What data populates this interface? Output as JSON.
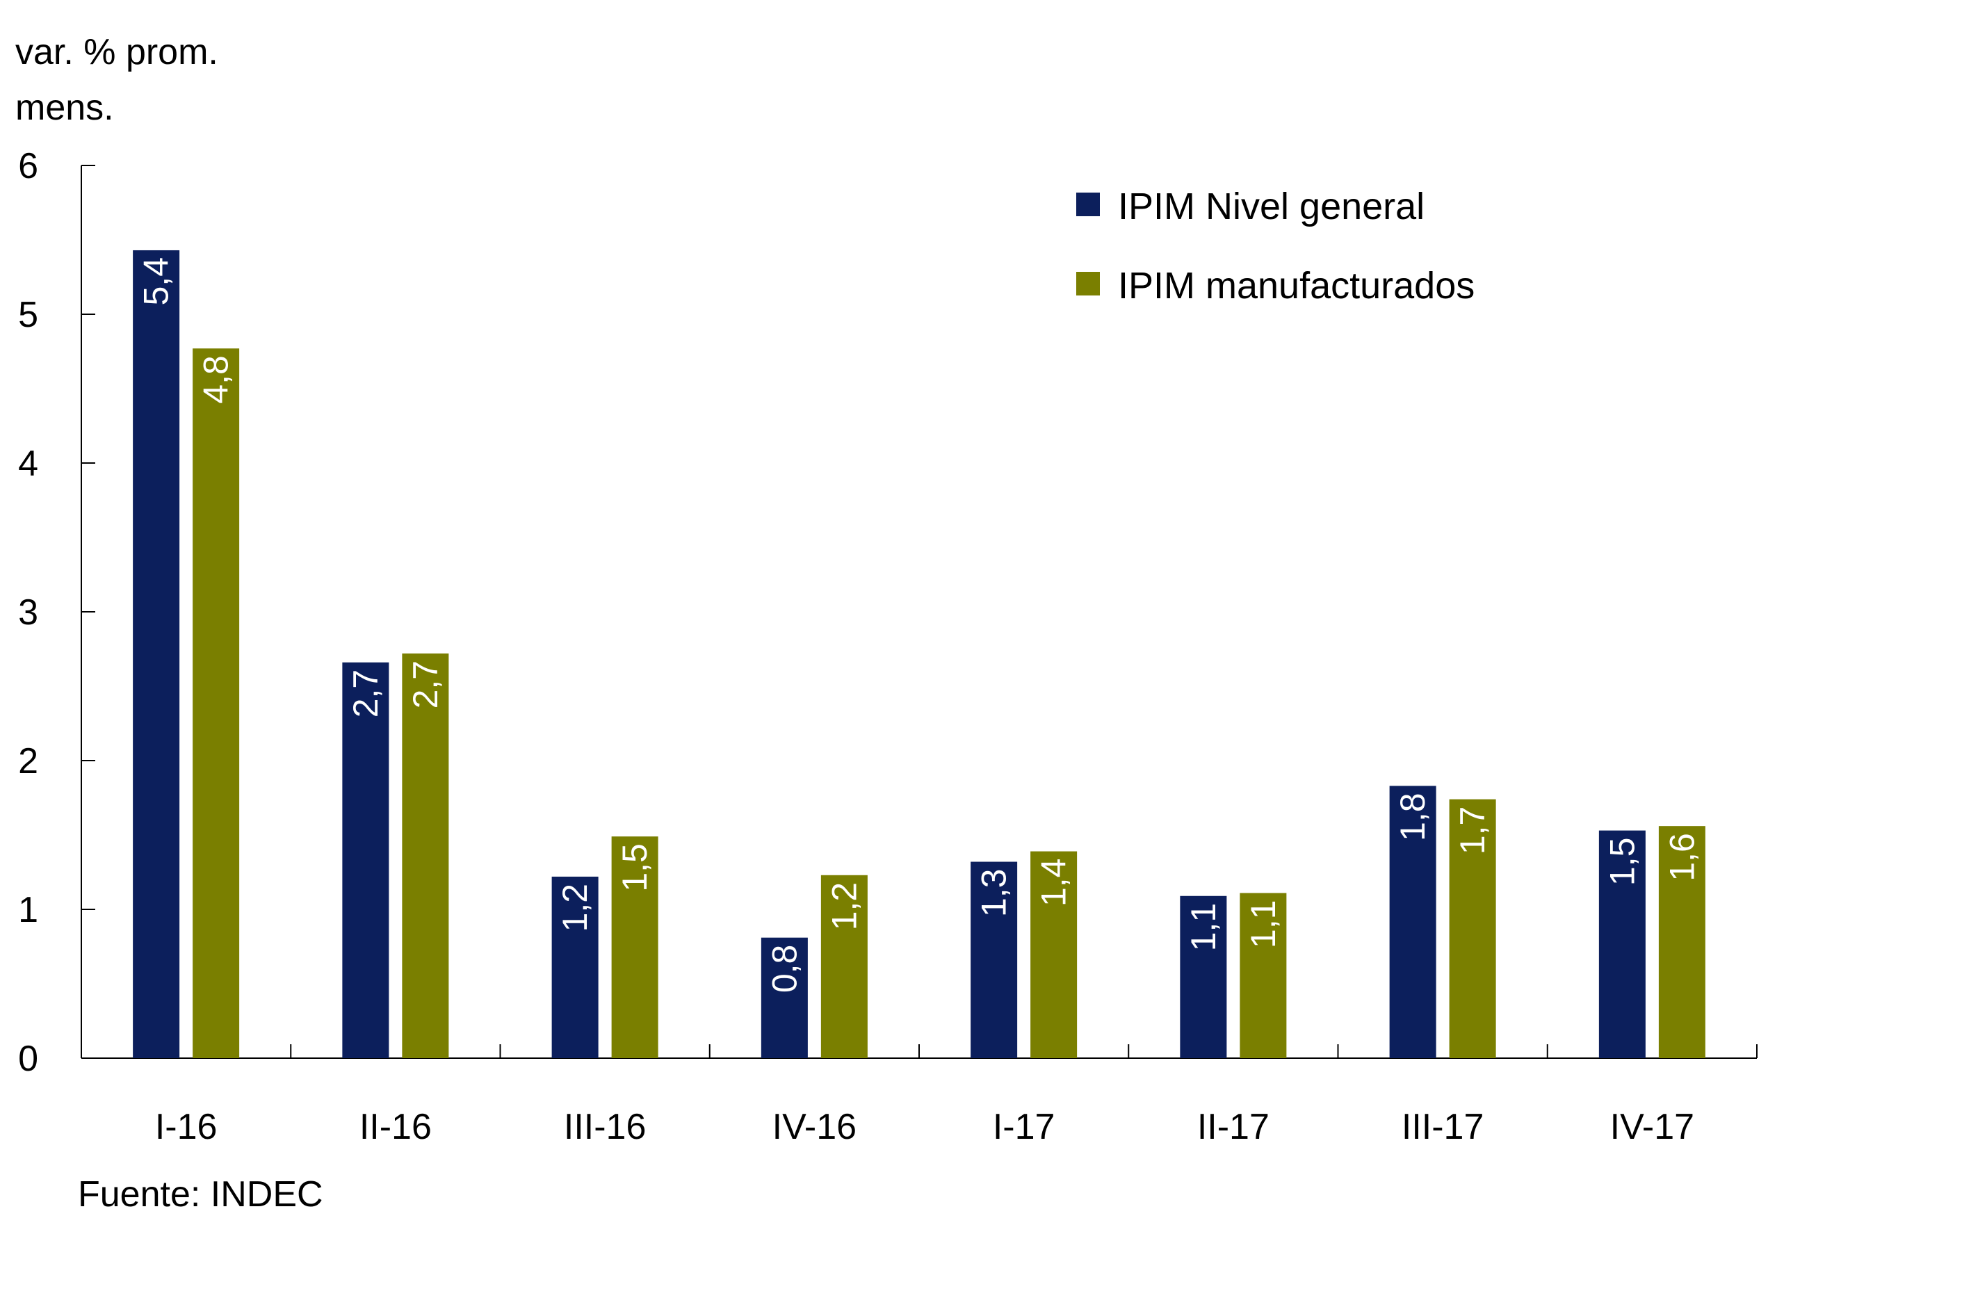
{
  "chart_data": {
    "type": "bar",
    "ylabel_line1": "var. % prom.",
    "ylabel_line2": "mens.",
    "ylim": [
      0,
      6
    ],
    "yticks": [
      0,
      1,
      2,
      3,
      4,
      5,
      6
    ],
    "categories": [
      "I-16",
      "II-16",
      "III-16",
      "IV-16",
      "I-17",
      "II-17",
      "III-17",
      "IV-17"
    ],
    "series": [
      {
        "name": "IPIM Nivel general",
        "color": "#0c1f5c",
        "values": [
          5.43,
          2.66,
          1.22,
          0.81,
          1.32,
          1.09,
          1.83,
          1.53
        ],
        "labels": [
          "5,4",
          "2,7",
          "1,2",
          "0,8",
          "1,3",
          "1,1",
          "1,8",
          "1,5"
        ]
      },
      {
        "name": "IPIM manufacturados",
        "color": "#7a7f00",
        "values": [
          4.77,
          2.72,
          1.49,
          1.23,
          1.39,
          1.11,
          1.74,
          1.56
        ],
        "labels": [
          "4,8",
          "2,7",
          "1,5",
          "1,2",
          "1,4",
          "1,1",
          "1,7",
          "1,6"
        ]
      }
    ],
    "legend_position": "top-right",
    "grid": false,
    "source": "Fuente: INDEC"
  }
}
